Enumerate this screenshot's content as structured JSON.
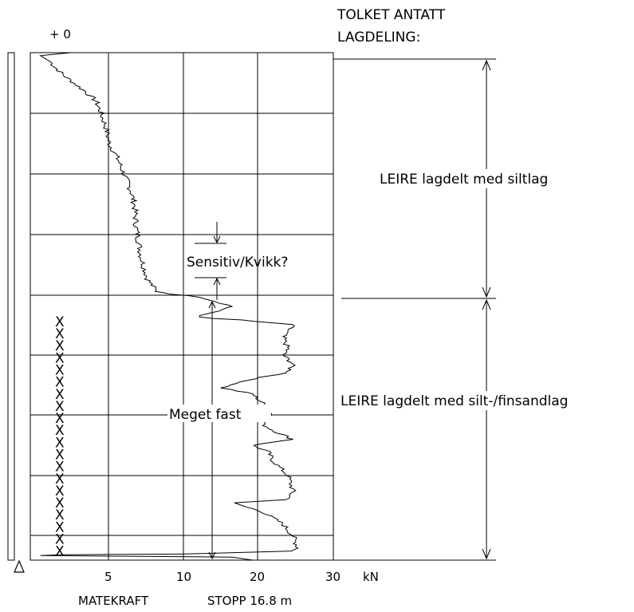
{
  "chart_data": {
    "type": "line",
    "title": "",
    "xlabel": "kN",
    "ylabel": "",
    "xlim": [
      0,
      30
    ],
    "ylim": [
      0,
      16.8
    ],
    "x_ticks": [
      "5",
      "10",
      "20",
      "30"
    ],
    "depth_top_label": "+ 0",
    "series": [
      {
        "values": [
          [
            4,
            0.0
          ],
          [
            1,
            0.1
          ],
          [
            1.5,
            0.2
          ],
          [
            2,
            0.3
          ],
          [
            2.5,
            0.5
          ],
          [
            3.5,
            0.8
          ],
          [
            5.5,
            1.3
          ],
          [
            6.5,
            1.6
          ],
          [
            7,
            2.0
          ],
          [
            7.5,
            2.5
          ],
          [
            7.8,
            3.0
          ],
          [
            8.5,
            3.4
          ],
          [
            9,
            3.8
          ],
          [
            9.5,
            4.2
          ],
          [
            10,
            4.6
          ],
          [
            10.3,
            5.0
          ],
          [
            10.5,
            5.8
          ],
          [
            11,
            6.8
          ],
          [
            11.6,
            7.5
          ],
          [
            12.5,
            7.9
          ],
          [
            14,
            7.99
          ],
          [
            17,
            8.1
          ],
          [
            20,
            8.4
          ],
          [
            17,
            8.7
          ],
          [
            16.5,
            8.75
          ],
          [
            18,
            8.8
          ],
          [
            21,
            8.85
          ],
          [
            22,
            8.9
          ],
          [
            26,
            9.0
          ],
          [
            25,
            9.4
          ],
          [
            25.5,
            9.8
          ],
          [
            25,
            10.0
          ],
          [
            26,
            10.3
          ],
          [
            25.5,
            10.6
          ],
          [
            22,
            10.8
          ],
          [
            19,
            11.1
          ],
          [
            22,
            11.3
          ],
          [
            23,
            11.6
          ],
          [
            24,
            12.0
          ],
          [
            23,
            12.3
          ],
          [
            24,
            12.5
          ],
          [
            26,
            12.8
          ],
          [
            22,
            13.0
          ],
          [
            23.5,
            13.2
          ],
          [
            24,
            13.5
          ],
          [
            25.5,
            14.0
          ],
          [
            26,
            14.5
          ],
          [
            25.5,
            14.8
          ],
          [
            20,
            14.9
          ],
          [
            23,
            15.2
          ],
          [
            25,
            15.6
          ],
          [
            26,
            16.0
          ],
          [
            26.5,
            16.4
          ],
          [
            26,
            16.5
          ],
          [
            15,
            16.6
          ],
          [
            3,
            16.62
          ],
          [
            1,
            16.65
          ],
          [
            20,
            16.7
          ],
          [
            22,
            16.8
          ]
        ]
      }
    ],
    "markers": {
      "x_symbol": "X",
      "x_value": 3,
      "depths": [
        8.9,
        9.3,
        9.7,
        10.1,
        10.5,
        10.9,
        11.3,
        11.7,
        12.1,
        12.5,
        12.9,
        13.3,
        13.7,
        14.1,
        14.5,
        14.9,
        15.3,
        15.7,
        16.1,
        16.5
      ]
    },
    "annotations": {
      "sensitive": "Sensitiv/Kvikk?",
      "fast": "Meget fast"
    }
  },
  "header": {
    "interpreted_title_line1": "TOLKET ANTATT",
    "interpreted_title_line2": "LAGDELING:"
  },
  "layers": [
    {
      "label": "LEIRE lagdelt med siltlag"
    },
    {
      "label": "LEIRE lagdelt med silt-/finsandlag"
    }
  ],
  "footer": {
    "method": "MATEKRAFT",
    "stop": "STOPP 16.8 m"
  }
}
